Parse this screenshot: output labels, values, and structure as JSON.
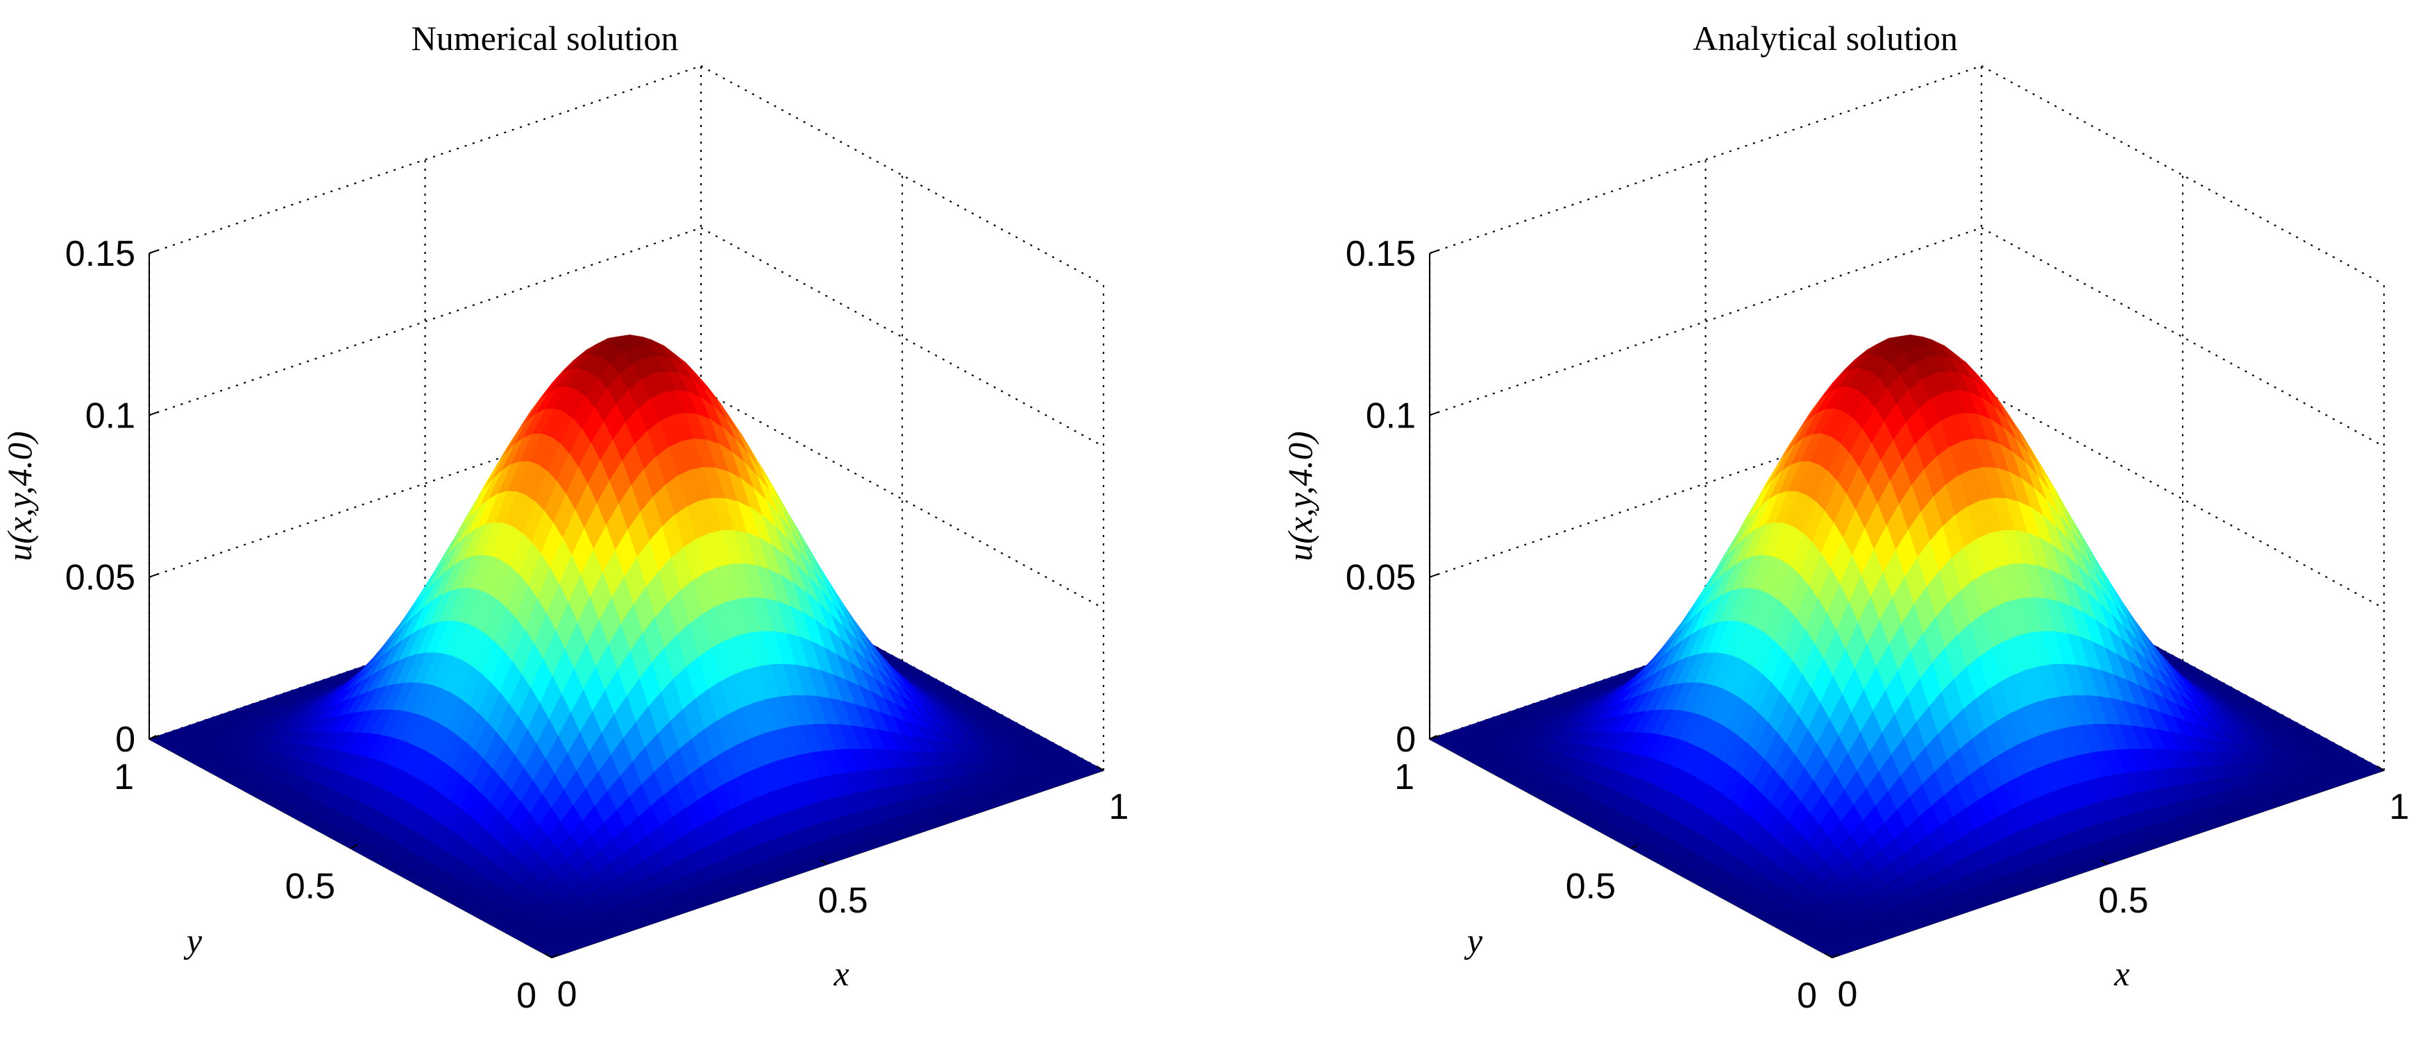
{
  "chart_data": [
    {
      "type": "surface",
      "title": "Numerical solution",
      "xlabel": "x",
      "ylabel": "y",
      "zlabel": "u(x,y,4.0)",
      "xlim": [
        0,
        1
      ],
      "ylim": [
        0,
        1
      ],
      "zlim": [
        0,
        0.15
      ],
      "x_ticks": [
        "0",
        "0.5",
        "1"
      ],
      "y_ticks": [
        "0",
        "0.5",
        "1"
      ],
      "z_ticks": [
        "0",
        "0.05",
        "0.1",
        "0.15"
      ],
      "peak": {
        "x": 0.5,
        "y": 0.5,
        "z": 0.128
      },
      "colormap": "jet",
      "grid": true
    },
    {
      "type": "surface",
      "title": "Analytical solution",
      "xlabel": "x",
      "ylabel": "y",
      "zlabel": "u(x,y,4.0)",
      "xlim": [
        0,
        1
      ],
      "ylim": [
        0,
        1
      ],
      "zlim": [
        0,
        0.15
      ],
      "x_ticks": [
        "0",
        "0.5",
        "1"
      ],
      "y_ticks": [
        "0",
        "0.5",
        "1"
      ],
      "z_ticks": [
        "0",
        "0.05",
        "0.1",
        "0.15"
      ],
      "peak": {
        "x": 0.5,
        "y": 0.5,
        "z": 0.128
      },
      "colormap": "jet",
      "grid": true
    }
  ]
}
